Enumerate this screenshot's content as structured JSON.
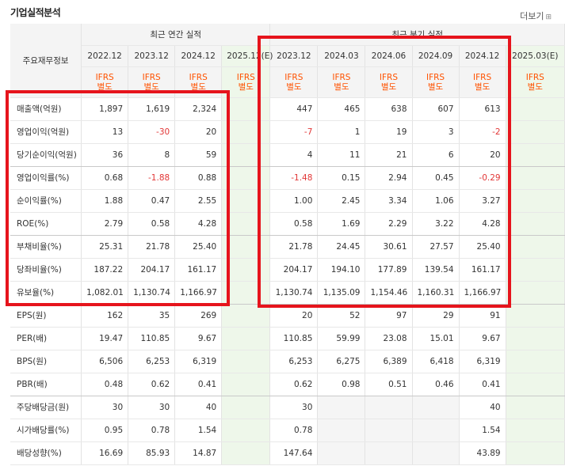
{
  "section_title": "기업실적분석",
  "more_link": "더보기",
  "header": {
    "row_header": "주요재무정보",
    "annual_group": "최근 연간 실적",
    "quarter_group": "최근 분기 실적",
    "annual_periods": [
      "2022.12",
      "2023.12",
      "2024.12",
      "2025.12(E)"
    ],
    "quarter_periods": [
      "2023.12",
      "2024.03",
      "2024.06",
      "2024.09",
      "2024.12",
      "2025.03(E)"
    ],
    "ifrs_line1": "IFRS",
    "ifrs_line2": "별도"
  },
  "rows": [
    {
      "label": "매출액(억원)",
      "annual": [
        "1,897",
        "1,619",
        "2,324",
        ""
      ],
      "quarter": [
        "447",
        "465",
        "638",
        "607",
        "613",
        ""
      ]
    },
    {
      "label": "영업이익(억원)",
      "annual": [
        "13",
        "-30",
        "20",
        ""
      ],
      "quarter": [
        "-7",
        "1",
        "19",
        "3",
        "-2",
        ""
      ]
    },
    {
      "label": "당기순이익(억원)",
      "annual": [
        "36",
        "8",
        "59",
        ""
      ],
      "quarter": [
        "4",
        "11",
        "21",
        "6",
        "20",
        ""
      ]
    },
    {
      "label": "영업이익률(%)",
      "annual": [
        "0.68",
        "-1.88",
        "0.88",
        ""
      ],
      "quarter": [
        "-1.48",
        "0.15",
        "2.94",
        "0.45",
        "-0.29",
        ""
      ]
    },
    {
      "label": "순이익률(%)",
      "annual": [
        "1.88",
        "0.47",
        "2.55",
        ""
      ],
      "quarter": [
        "1.00",
        "2.45",
        "3.34",
        "1.06",
        "3.27",
        ""
      ]
    },
    {
      "label": "ROE(%)",
      "annual": [
        "2.79",
        "0.58",
        "4.28",
        ""
      ],
      "quarter": [
        "0.58",
        "1.69",
        "2.29",
        "3.22",
        "4.28",
        ""
      ]
    },
    {
      "label": "부채비율(%)",
      "annual": [
        "25.31",
        "21.78",
        "25.40",
        ""
      ],
      "quarter": [
        "21.78",
        "24.45",
        "30.61",
        "27.57",
        "25.40",
        ""
      ]
    },
    {
      "label": "당좌비율(%)",
      "annual": [
        "187.22",
        "204.17",
        "161.17",
        ""
      ],
      "quarter": [
        "204.17",
        "194.10",
        "177.89",
        "139.54",
        "161.17",
        ""
      ]
    },
    {
      "label": "유보율(%)",
      "annual": [
        "1,082.01",
        "1,130.74",
        "1,166.97",
        ""
      ],
      "quarter": [
        "1,130.74",
        "1,135.09",
        "1,154.46",
        "1,160.31",
        "1,166.97",
        ""
      ]
    },
    {
      "label": "EPS(원)",
      "annual": [
        "162",
        "35",
        "269",
        ""
      ],
      "quarter": [
        "20",
        "52",
        "97",
        "29",
        "91",
        ""
      ]
    },
    {
      "label": "PER(배)",
      "annual": [
        "19.47",
        "110.85",
        "9.67",
        ""
      ],
      "quarter": [
        "110.85",
        "59.99",
        "23.08",
        "15.01",
        "9.67",
        ""
      ]
    },
    {
      "label": "BPS(원)",
      "annual": [
        "6,506",
        "6,253",
        "6,319",
        ""
      ],
      "quarter": [
        "6,253",
        "6,275",
        "6,389",
        "6,418",
        "6,319",
        ""
      ]
    },
    {
      "label": "PBR(배)",
      "annual": [
        "0.48",
        "0.62",
        "0.41",
        ""
      ],
      "quarter": [
        "0.62",
        "0.98",
        "0.51",
        "0.46",
        "0.41",
        ""
      ]
    },
    {
      "label": "주당배당금(원)",
      "annual": [
        "30",
        "30",
        "40",
        ""
      ],
      "quarter": [
        "30",
        "",
        "",
        "",
        "40",
        ""
      ]
    },
    {
      "label": "시가배당률(%)",
      "annual": [
        "0.95",
        "0.78",
        "1.54",
        ""
      ],
      "quarter": [
        "0.78",
        "",
        "",
        "",
        "1.54",
        ""
      ]
    },
    {
      "label": "배당성향(%)",
      "annual": [
        "16.69",
        "85.93",
        "14.87",
        ""
      ],
      "quarter": [
        "147.64",
        "",
        "",
        "",
        "43.89",
        ""
      ]
    }
  ],
  "colors": {
    "negative": "#e23737",
    "ifrs": "#ff5200",
    "highlight_box": "#e6141c",
    "estimate_bg": "#eef7ea"
  }
}
